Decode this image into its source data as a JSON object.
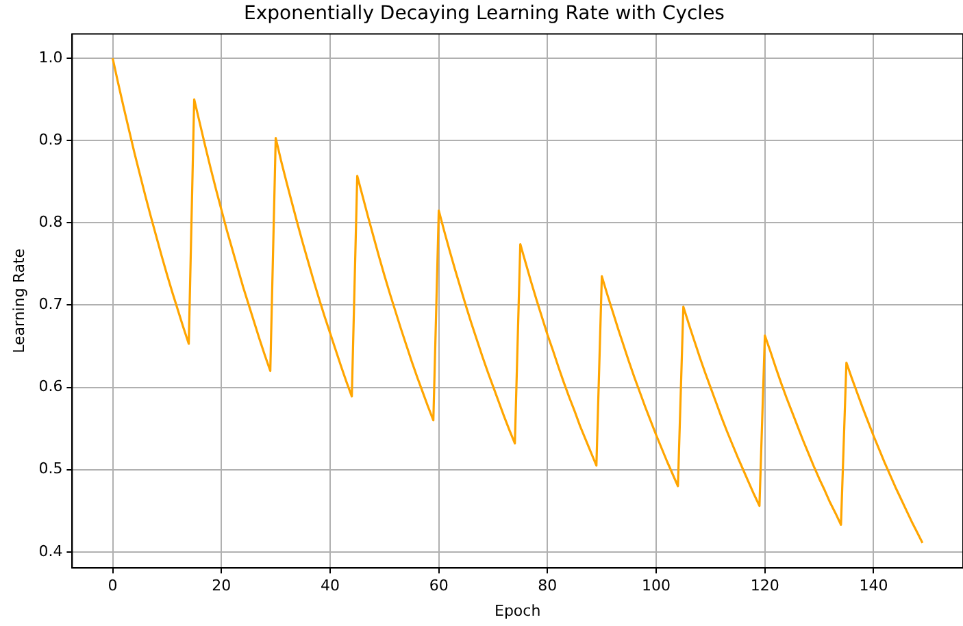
{
  "chart_data": {
    "type": "line",
    "title": "Exponentially Decaying Learning Rate with Cycles",
    "xlabel": "Epoch",
    "ylabel": "Learning Rate",
    "x": [
      0,
      1,
      2,
      3,
      4,
      5,
      6,
      7,
      8,
      9,
      10,
      11,
      12,
      13,
      14,
      15,
      16,
      17,
      18,
      19,
      20,
      21,
      22,
      23,
      24,
      25,
      26,
      27,
      28,
      29,
      30,
      31,
      32,
      33,
      34,
      35,
      36,
      37,
      38,
      39,
      40,
      41,
      42,
      43,
      44,
      45,
      46,
      47,
      48,
      49,
      50,
      51,
      52,
      53,
      54,
      55,
      56,
      57,
      58,
      59,
      60,
      61,
      62,
      63,
      64,
      65,
      66,
      67,
      68,
      69,
      70,
      71,
      72,
      73,
      74,
      75,
      76,
      77,
      78,
      79,
      80,
      81,
      82,
      83,
      84,
      85,
      86,
      87,
      88,
      89,
      90,
      91,
      92,
      93,
      94,
      95,
      96,
      97,
      98,
      99,
      100,
      101,
      102,
      103,
      104,
      105,
      106,
      107,
      108,
      109,
      110,
      111,
      112,
      113,
      114,
      115,
      116,
      117,
      118,
      119,
      120,
      121,
      122,
      123,
      124,
      125,
      126,
      127,
      128,
      129,
      130,
      131,
      132,
      133,
      134,
      135,
      136,
      137,
      138,
      139,
      140,
      141,
      142,
      143,
      144,
      145,
      146,
      147,
      148,
      149
    ],
    "series": [
      {
        "color": "#ffa500",
        "values": [
          1.0,
          0.97,
          0.941,
          0.913,
          0.885,
          0.859,
          0.833,
          0.808,
          0.784,
          0.76,
          0.737,
          0.715,
          0.694,
          0.673,
          0.653,
          0.95,
          0.922,
          0.894,
          0.867,
          0.841,
          0.816,
          0.791,
          0.768,
          0.745,
          0.722,
          0.701,
          0.68,
          0.659,
          0.639,
          0.62,
          0.903,
          0.875,
          0.849,
          0.824,
          0.799,
          0.775,
          0.752,
          0.729,
          0.707,
          0.686,
          0.666,
          0.646,
          0.626,
          0.607,
          0.589,
          0.857,
          0.832,
          0.807,
          0.783,
          0.759,
          0.736,
          0.714,
          0.693,
          0.672,
          0.652,
          0.632,
          0.613,
          0.595,
          0.577,
          0.56,
          0.815,
          0.79,
          0.766,
          0.743,
          0.721,
          0.699,
          0.678,
          0.658,
          0.638,
          0.619,
          0.601,
          0.583,
          0.565,
          0.548,
          0.532,
          0.774,
          0.751,
          0.728,
          0.706,
          0.685,
          0.664,
          0.645,
          0.625,
          0.606,
          0.588,
          0.571,
          0.553,
          0.537,
          0.521,
          0.505,
          0.735,
          0.713,
          0.692,
          0.671,
          0.651,
          0.631,
          0.612,
          0.594,
          0.576,
          0.559,
          0.542,
          0.526,
          0.51,
          0.495,
          0.48,
          0.698,
          0.677,
          0.657,
          0.637,
          0.618,
          0.6,
          0.582,
          0.564,
          0.547,
          0.531,
          0.515,
          0.5,
          0.485,
          0.47,
          0.456,
          0.663,
          0.644,
          0.624,
          0.605,
          0.587,
          0.57,
          0.553,
          0.536,
          0.52,
          0.504,
          0.489,
          0.475,
          0.46,
          0.447,
          0.433,
          0.63,
          0.611,
          0.593,
          0.575,
          0.558,
          0.541,
          0.525,
          0.509,
          0.494,
          0.479,
          0.465,
          0.451,
          0.437,
          0.424,
          0.411
        ]
      }
    ],
    "xlim": [
      -7.45,
      156.45
    ],
    "xticks": [
      0,
      20,
      40,
      60,
      80,
      100,
      120,
      140
    ],
    "ylim": [
      0.3806,
      1.0295
    ],
    "yticks": [
      0.4,
      0.5,
      0.6,
      0.7,
      0.8,
      0.9,
      {
        "value": 1,
        "label": "1.0"
      }
    ],
    "grid": true,
    "line_style": "solid"
  }
}
